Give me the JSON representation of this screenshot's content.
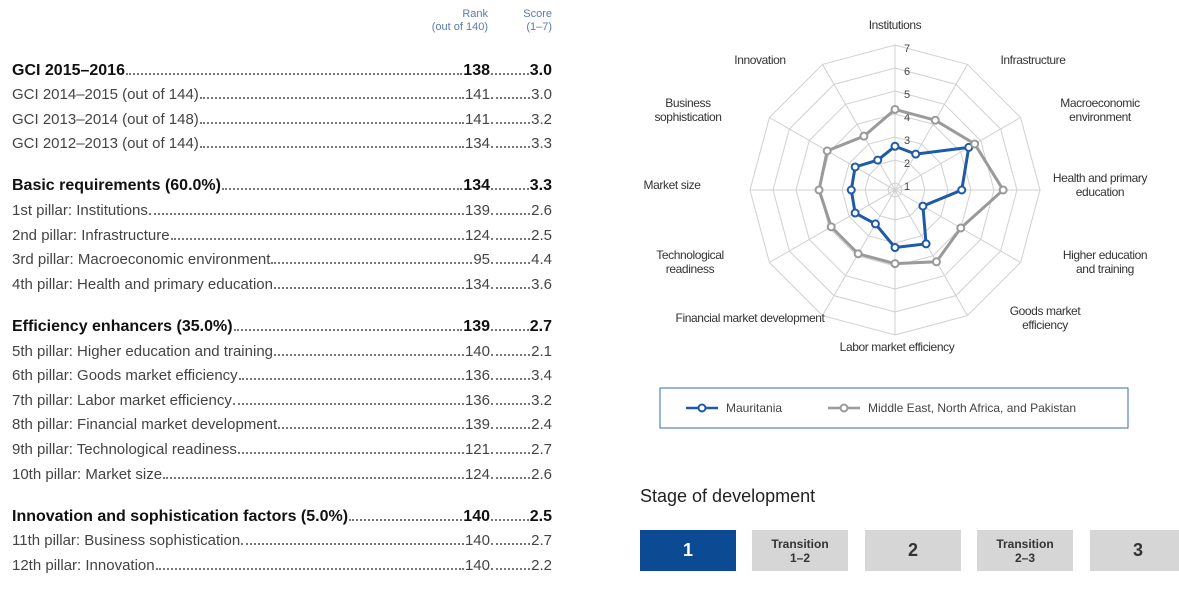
{
  "table": {
    "header": {
      "rank": "Rank",
      "rank_note": "(out of 140)",
      "score": "Score",
      "score_note": "(1–7)"
    },
    "groups": [
      {
        "rows": [
          {
            "label": "GCI 2015–2016",
            "rank": 138,
            "score": "3.0"
          },
          {
            "label": "GCI 2014–2015 (out of 144)",
            "rank": 141,
            "score": "3.0"
          },
          {
            "label": "GCI 2013–2014 (out of 148)",
            "rank": 141,
            "score": "3.2"
          },
          {
            "label": "GCI 2012–2013 (out of 144)",
            "rank": 134,
            "score": "3.3"
          }
        ]
      },
      {
        "rows": [
          {
            "label": "Basic requirements (60.0%)",
            "rank": 134,
            "score": "3.3"
          },
          {
            "label": "1st pillar: Institutions",
            "rank": 139,
            "score": "2.6"
          },
          {
            "label": "2nd pillar: Infrastructure",
            "rank": 124,
            "score": "2.5"
          },
          {
            "label": "3rd pillar: Macroeconomic environment",
            "rank": 95,
            "score": "4.4"
          },
          {
            "label": "4th pillar: Health and primary education",
            "rank": 134,
            "score": "3.6"
          }
        ]
      },
      {
        "rows": [
          {
            "label": "Efficiency enhancers (35.0%)",
            "rank": 139,
            "score": "2.7"
          },
          {
            "label": "5th pillar: Higher education and training",
            "rank": 140,
            "score": "2.1"
          },
          {
            "label": "6th pillar: Goods market efficiency",
            "rank": 136,
            "score": "3.4"
          },
          {
            "label": "7th pillar: Labor market efficiency",
            "rank": 136,
            "score": "3.2"
          },
          {
            "label": "8th pillar: Financial market development",
            "rank": 139,
            "score": "2.4"
          },
          {
            "label": "9th pillar: Technological readiness",
            "rank": 121,
            "score": "2.7"
          },
          {
            "label": "10th pillar: Market size",
            "rank": 124,
            "score": "2.6"
          }
        ]
      },
      {
        "rows": [
          {
            "label": "Innovation and sophistication factors (5.0%)",
            "rank": 140,
            "score": "2.5"
          },
          {
            "label": "11th pillar: Business sophistication",
            "rank": 140,
            "score": "2.7"
          },
          {
            "label": "12th pillar: Innovation",
            "rank": 140,
            "score": "2.2"
          }
        ]
      }
    ]
  },
  "chart_data": {
    "type": "radar",
    "categories": [
      "Institutions",
      "Infrastructure",
      "Macroeconomic environment",
      "Health and primary education",
      "Higher education and training",
      "Goods market efficiency",
      "Labor market efficiency",
      "Financial market development",
      "Technological readiness",
      "Market size",
      "Business sophistication",
      "Innovation"
    ],
    "series": [
      {
        "name": "Mauritania",
        "color": "#1f5aa6",
        "values": [
          2.6,
          2.5,
          4.4,
          3.6,
          2.1,
          3.4,
          3.2,
          2.4,
          2.7,
          2.6,
          2.7,
          2.2
        ]
      },
      {
        "name": "Middle East, North Africa, and Pakistan",
        "color": "#9a9a9a",
        "values": [
          4.2,
          4.2,
          4.7,
          5.4,
          4.0,
          4.3,
          3.9,
          3.9,
          3.9,
          4.0,
          4.1,
          3.4
        ]
      }
    ],
    "rlim": [
      0.7,
      7
    ],
    "rticks": [
      1,
      2,
      3,
      4,
      5,
      6,
      7
    ],
    "grid": true
  },
  "stage": {
    "title": "Stage of development",
    "highlight_color": "#0d4a94",
    "stages": [
      {
        "label": "1",
        "active": true
      },
      {
        "label": "Transition 1–2"
      },
      {
        "label": "2"
      },
      {
        "label": "Transition 2–3"
      },
      {
        "label": "3"
      }
    ]
  }
}
